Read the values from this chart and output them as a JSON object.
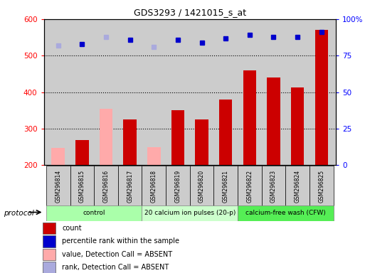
{
  "title": "GDS3293 / 1421015_s_at",
  "samples": [
    "GSM296814",
    "GSM296815",
    "GSM296816",
    "GSM296817",
    "GSM296818",
    "GSM296819",
    "GSM296820",
    "GSM296821",
    "GSM296822",
    "GSM296823",
    "GSM296824",
    "GSM296825"
  ],
  "count_values": [
    null,
    268,
    null,
    325,
    null,
    350,
    325,
    380,
    460,
    440,
    412,
    570
  ],
  "count_absent": [
    248,
    null,
    355,
    null,
    250,
    null,
    null,
    null,
    null,
    null,
    null,
    null
  ],
  "rank_values_pct": [
    null,
    83,
    null,
    86,
    null,
    86,
    84,
    87,
    89,
    88,
    88,
    91
  ],
  "rank_absent_pct": [
    82,
    null,
    88,
    null,
    81,
    null,
    null,
    null,
    null,
    null,
    null,
    null
  ],
  "ylim_left": [
    200,
    600
  ],
  "ylim_right": [
    0,
    100
  ],
  "yticks_left": [
    200,
    300,
    400,
    500,
    600
  ],
  "yticks_right": [
    0,
    25,
    50,
    75,
    100
  ],
  "group_defs": [
    {
      "label": "control",
      "start": 0,
      "end": 3,
      "color": "#aaffaa"
    },
    {
      "label": "20 calcium ion pulses (20-p)",
      "start": 4,
      "end": 7,
      "color": "#ccffcc"
    },
    {
      "label": "calcium-free wash (CFW)",
      "start": 8,
      "end": 11,
      "color": "#55ee55"
    }
  ],
  "color_count": "#cc0000",
  "color_count_absent": "#ffaaaa",
  "color_rank": "#0000cc",
  "color_rank_absent": "#aaaadd",
  "legend_items": [
    {
      "label": "count",
      "color": "#cc0000"
    },
    {
      "label": "percentile rank within the sample",
      "color": "#0000cc"
    },
    {
      "label": "value, Detection Call = ABSENT",
      "color": "#ffaaaa"
    },
    {
      "label": "rank, Detection Call = ABSENT",
      "color": "#aaaadd"
    }
  ],
  "bg_color": "#cccccc",
  "protocol_label": "protocol",
  "grid_dotted_color": "black"
}
